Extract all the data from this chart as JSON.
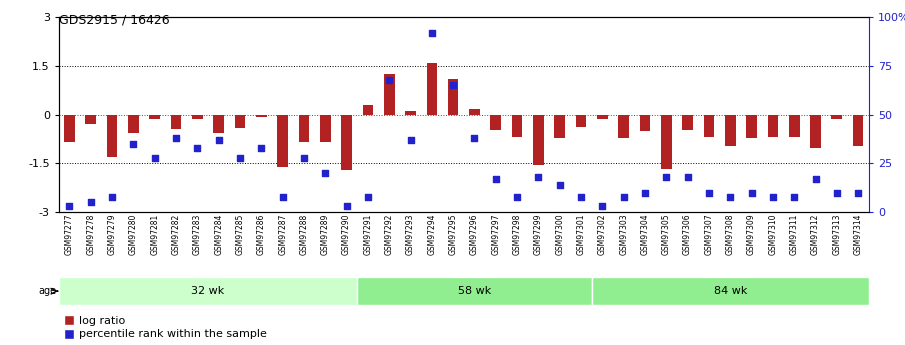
{
  "title": "GDS2915 / 16426",
  "samples": [
    "GSM97277",
    "GSM97278",
    "GSM97279",
    "GSM97280",
    "GSM97281",
    "GSM97282",
    "GSM97283",
    "GSM97284",
    "GSM97285",
    "GSM97286",
    "GSM97287",
    "GSM97288",
    "GSM97289",
    "GSM97290",
    "GSM97291",
    "GSM97292",
    "GSM97293",
    "GSM97294",
    "GSM97295",
    "GSM97296",
    "GSM97297",
    "GSM97298",
    "GSM97299",
    "GSM97300",
    "GSM97301",
    "GSM97302",
    "GSM97303",
    "GSM97304",
    "GSM97305",
    "GSM97306",
    "GSM97307",
    "GSM97308",
    "GSM97309",
    "GSM97310",
    "GSM97311",
    "GSM97312",
    "GSM97313",
    "GSM97314"
  ],
  "log_ratio": [
    -0.85,
    -0.3,
    -1.3,
    -0.55,
    -0.12,
    -0.45,
    -0.12,
    -0.55,
    -0.42,
    -0.08,
    -1.62,
    -0.85,
    -0.85,
    -1.7,
    0.3,
    1.25,
    0.12,
    1.6,
    1.1,
    0.18,
    -0.48,
    -0.7,
    -1.55,
    -0.72,
    -0.38,
    -0.12,
    -0.72,
    -0.5,
    -1.68,
    -0.48,
    -0.68,
    -0.95,
    -0.72,
    -0.68,
    -0.68,
    -1.02,
    -0.12,
    -0.95
  ],
  "percentile": [
    3,
    5,
    8,
    35,
    28,
    38,
    33,
    37,
    28,
    33,
    8,
    28,
    20,
    3,
    8,
    68,
    37,
    92,
    65,
    38,
    17,
    8,
    18,
    14,
    8,
    3,
    8,
    10,
    18,
    18,
    10,
    8,
    10,
    8,
    8,
    17,
    10,
    10
  ],
  "groups": [
    {
      "label": "32 wk",
      "start": 0,
      "end": 14
    },
    {
      "label": "58 wk",
      "start": 14,
      "end": 25
    },
    {
      "label": "84 wk",
      "start": 25,
      "end": 38
    }
  ],
  "group_colors": [
    "#ccffcc",
    "#90ee90",
    "#90ee90"
  ],
  "bar_color": "#B22222",
  "dot_color": "#2222CC",
  "ylim_left": [
    -3,
    3
  ],
  "ylim_right": [
    0,
    100
  ],
  "right_ticks": [
    0,
    25,
    50,
    75,
    100
  ],
  "right_tick_labels": [
    "0",
    "25",
    "50",
    "75",
    "100%"
  ],
  "left_ticks": [
    -3,
    -1.5,
    0,
    1.5,
    3
  ],
  "xtick_bg": "#d8d8d8",
  "bg_color": "#ffffff"
}
